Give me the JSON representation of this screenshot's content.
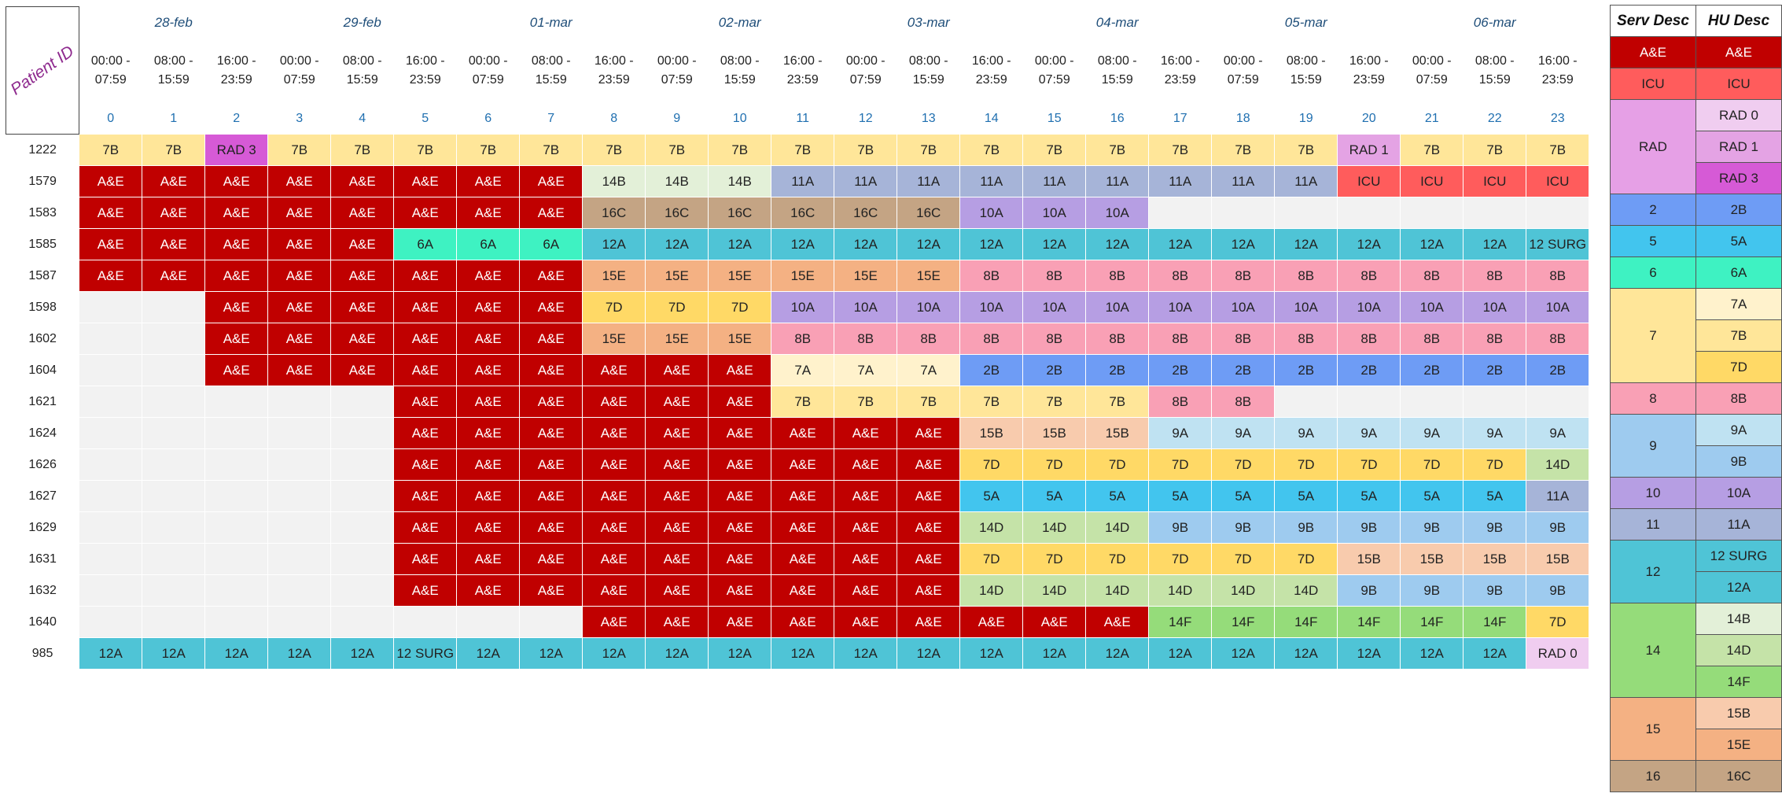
{
  "corner_label": "Patient ID",
  "dates": [
    "28-feb",
    "29-feb",
    "01-mar",
    "02-mar",
    "03-mar",
    "04-mar",
    "05-mar",
    "06-mar"
  ],
  "times": [
    "00:00 -\n07:59",
    "08:00 -\n15:59",
    "16:00 -\n23:59"
  ],
  "slots": [
    "0",
    "1",
    "2",
    "3",
    "4",
    "5",
    "6",
    "7",
    "8",
    "9",
    "10",
    "11",
    "12",
    "13",
    "14",
    "15",
    "16",
    "17",
    "18",
    "19",
    "20",
    "21",
    "22",
    "23"
  ],
  "colors": {
    "A&E": "#c00000",
    "ICU": "#ff5c5c",
    "RAD 0": "#f0cdf0",
    "RAD 1": "#e4a3e4",
    "RAD 3": "#d65ad6",
    "RAD": "#e6a0e6",
    "2B": "#6e9cf5",
    "2": "#6e9cf5",
    "5A": "#42c5ee",
    "5": "#42c5ee",
    "6A": "#3ef2c2",
    "6": "#3ef2c2",
    "7A": "#fff2cc",
    "7B": "#ffe699",
    "7D": "#ffd966",
    "7": "#ffe699",
    "8B": "#f9a0b5",
    "8": "#f9a0b5",
    "9A": "#bfe2f2",
    "9B": "#9ecbef",
    "9": "#9ecbef",
    "10A": "#b69ee3",
    "10": "#b69ee3",
    "11A": "#a6b4d8",
    "11": "#a6b4d8",
    "12A": "#4fc4d6",
    "12 SURG": "#4fc4d6",
    "12": "#4fc4d6",
    "14B": "#e3f0d8",
    "14D": "#c5e3a8",
    "14F": "#95dc7a",
    "14": "#95dc7a",
    "15B": "#f8cbad",
    "15E": "#f4b183",
    "15": "#f4b183",
    "16C": "#c4a484",
    "16": "#c4a484"
  },
  "patients": [
    {
      "id": "1222",
      "cells": [
        "7B",
        "7B",
        "RAD 3",
        "7B",
        "7B",
        "7B",
        "7B",
        "7B",
        "7B",
        "7B",
        "7B",
        "7B",
        "7B",
        "7B",
        "7B",
        "7B",
        "7B",
        "7B",
        "7B",
        "7B",
        "RAD 1",
        "7B",
        "7B",
        "7B"
      ]
    },
    {
      "id": "1579",
      "cells": [
        "A&E",
        "A&E",
        "A&E",
        "A&E",
        "A&E",
        "A&E",
        "A&E",
        "A&E",
        "14B",
        "14B",
        "14B",
        "11A",
        "11A",
        "11A",
        "11A",
        "11A",
        "11A",
        "11A",
        "11A",
        "11A",
        "ICU",
        "ICU",
        "ICU",
        "ICU"
      ]
    },
    {
      "id": "1583",
      "cells": [
        "A&E",
        "A&E",
        "A&E",
        "A&E",
        "A&E",
        "A&E",
        "A&E",
        "A&E",
        "16C",
        "16C",
        "16C",
        "16C",
        "16C",
        "16C",
        "10A",
        "10A",
        "10A",
        "",
        "",
        "",
        "",
        "",
        "",
        ""
      ]
    },
    {
      "id": "1585",
      "cells": [
        "A&E",
        "A&E",
        "A&E",
        "A&E",
        "A&E",
        "6A",
        "6A",
        "6A",
        "12A",
        "12A",
        "12A",
        "12A",
        "12A",
        "12A",
        "12A",
        "12A",
        "12A",
        "12A",
        "12A",
        "12A",
        "12A",
        "12A",
        "12A",
        "12 SURG"
      ]
    },
    {
      "id": "1587",
      "cells": [
        "A&E",
        "A&E",
        "A&E",
        "A&E",
        "A&E",
        "A&E",
        "A&E",
        "A&E",
        "15E",
        "15E",
        "15E",
        "15E",
        "15E",
        "15E",
        "8B",
        "8B",
        "8B",
        "8B",
        "8B",
        "8B",
        "8B",
        "8B",
        "8B",
        "8B"
      ]
    },
    {
      "id": "1598",
      "cells": [
        "",
        "",
        "A&E",
        "A&E",
        "A&E",
        "A&E",
        "A&E",
        "A&E",
        "7D",
        "7D",
        "7D",
        "10A",
        "10A",
        "10A",
        "10A",
        "10A",
        "10A",
        "10A",
        "10A",
        "10A",
        "10A",
        "10A",
        "10A",
        "10A"
      ]
    },
    {
      "id": "1602",
      "cells": [
        "",
        "",
        "A&E",
        "A&E",
        "A&E",
        "A&E",
        "A&E",
        "A&E",
        "15E",
        "15E",
        "15E",
        "8B",
        "8B",
        "8B",
        "8B",
        "8B",
        "8B",
        "8B",
        "8B",
        "8B",
        "8B",
        "8B",
        "8B",
        "8B"
      ]
    },
    {
      "id": "1604",
      "cells": [
        "",
        "",
        "A&E",
        "A&E",
        "A&E",
        "A&E",
        "A&E",
        "A&E",
        "A&E",
        "A&E",
        "A&E",
        "7A",
        "7A",
        "7A",
        "2B",
        "2B",
        "2B",
        "2B",
        "2B",
        "2B",
        "2B",
        "2B",
        "2B",
        "2B"
      ]
    },
    {
      "id": "1621",
      "cells": [
        "",
        "",
        "",
        "",
        "",
        "A&E",
        "A&E",
        "A&E",
        "A&E",
        "A&E",
        "A&E",
        "7B",
        "7B",
        "7B",
        "7B",
        "7B",
        "7B",
        "8B",
        "8B",
        "",
        "",
        "",
        "",
        ""
      ]
    },
    {
      "id": "1624",
      "cells": [
        "",
        "",
        "",
        "",
        "",
        "A&E",
        "A&E",
        "A&E",
        "A&E",
        "A&E",
        "A&E",
        "A&E",
        "A&E",
        "A&E",
        "15B",
        "15B",
        "15B",
        "9A",
        "9A",
        "9A",
        "9A",
        "9A",
        "9A",
        "9A"
      ]
    },
    {
      "id": "1626",
      "cells": [
        "",
        "",
        "",
        "",
        "",
        "A&E",
        "A&E",
        "A&E",
        "A&E",
        "A&E",
        "A&E",
        "A&E",
        "A&E",
        "A&E",
        "7D",
        "7D",
        "7D",
        "7D",
        "7D",
        "7D",
        "7D",
        "7D",
        "7D",
        "14D"
      ]
    },
    {
      "id": "1627",
      "cells": [
        "",
        "",
        "",
        "",
        "",
        "A&E",
        "A&E",
        "A&E",
        "A&E",
        "A&E",
        "A&E",
        "A&E",
        "A&E",
        "A&E",
        "5A",
        "5A",
        "5A",
        "5A",
        "5A",
        "5A",
        "5A",
        "5A",
        "5A",
        "11A"
      ]
    },
    {
      "id": "1629",
      "cells": [
        "",
        "",
        "",
        "",
        "",
        "A&E",
        "A&E",
        "A&E",
        "A&E",
        "A&E",
        "A&E",
        "A&E",
        "A&E",
        "A&E",
        "14D",
        "14D",
        "14D",
        "9B",
        "9B",
        "9B",
        "9B",
        "9B",
        "9B",
        "9B"
      ]
    },
    {
      "id": "1631",
      "cells": [
        "",
        "",
        "",
        "",
        "",
        "A&E",
        "A&E",
        "A&E",
        "A&E",
        "A&E",
        "A&E",
        "A&E",
        "A&E",
        "A&E",
        "7D",
        "7D",
        "7D",
        "7D",
        "7D",
        "7D",
        "15B",
        "15B",
        "15B",
        "15B"
      ]
    },
    {
      "id": "1632",
      "cells": [
        "",
        "",
        "",
        "",
        "",
        "A&E",
        "A&E",
        "A&E",
        "A&E",
        "A&E",
        "A&E",
        "A&E",
        "A&E",
        "A&E",
        "14D",
        "14D",
        "14D",
        "14D",
        "14D",
        "14D",
        "9B",
        "9B",
        "9B",
        "9B"
      ]
    },
    {
      "id": "1640",
      "cells": [
        "",
        "",
        "",
        "",
        "",
        "",
        "",
        "",
        "A&E",
        "A&E",
        "A&E",
        "A&E",
        "A&E",
        "A&E",
        "A&E",
        "A&E",
        "A&E",
        "14F",
        "14F",
        "14F",
        "14F",
        "14F",
        "14F",
        "7D"
      ]
    },
    {
      "id": "985",
      "cells": [
        "12A",
        "12A",
        "12A",
        "12A",
        "12A",
        "12 SURG",
        "12A",
        "12A",
        "12A",
        "12A",
        "12A",
        "12A",
        "12A",
        "12A",
        "12A",
        "12A",
        "12A",
        "12A",
        "12A",
        "12A",
        "12A",
        "12A",
        "12A",
        "RAD 0"
      ]
    }
  ],
  "legend": {
    "headers": [
      "Serv Desc",
      "HU Desc"
    ],
    "groups": [
      {
        "serv": "A&E",
        "hu": [
          "A&E"
        ]
      },
      {
        "serv": "ICU",
        "hu": [
          "ICU"
        ]
      },
      {
        "serv": "RAD",
        "hu": [
          "RAD 0",
          "RAD 1",
          "RAD 3"
        ]
      },
      {
        "serv": "2",
        "hu": [
          "2B"
        ]
      },
      {
        "serv": "5",
        "hu": [
          "5A"
        ]
      },
      {
        "serv": "6",
        "hu": [
          "6A"
        ]
      },
      {
        "serv": "7",
        "hu": [
          "7A",
          "7B",
          "7D"
        ]
      },
      {
        "serv": "8",
        "hu": [
          "8B"
        ]
      },
      {
        "serv": "9",
        "hu": [
          "9A",
          "9B"
        ]
      },
      {
        "serv": "10",
        "hu": [
          "10A"
        ]
      },
      {
        "serv": "11",
        "hu": [
          "11A"
        ]
      },
      {
        "serv": "12",
        "hu": [
          "12 SURG",
          "12A"
        ]
      },
      {
        "serv": "14",
        "hu": [
          "14B",
          "14D",
          "14F"
        ]
      },
      {
        "serv": "15",
        "hu": [
          "15B",
          "15E"
        ]
      },
      {
        "serv": "16",
        "hu": [
          "16C"
        ]
      }
    ]
  }
}
